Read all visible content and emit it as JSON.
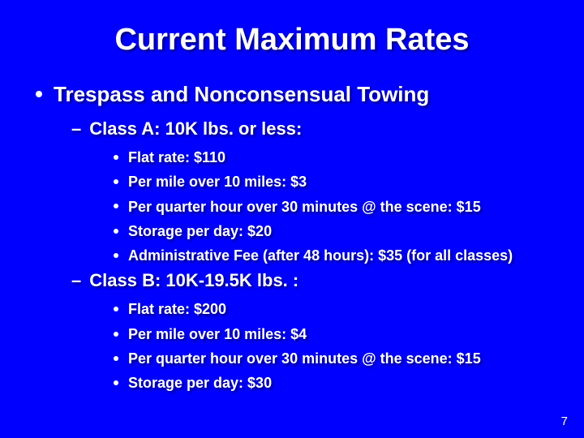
{
  "background_color": "#0000ff",
  "text_color": "#ffffff",
  "title": "Current Maximum Rates",
  "title_fontsize": 38,
  "heading_fontsize": 26,
  "subhead_fontsize": 22,
  "item_fontsize": 18,
  "bullet_color": "#ffffff",
  "page_number": "7",
  "sections": {
    "main": {
      "label": "Trespass and Nonconsensual Towing",
      "classes": [
        {
          "label": "Class A: 10K lbs. or less:",
          "items": [
            "Flat rate: $110",
            "Per mile over 10 miles: $3",
            "Per quarter hour over 30 minutes @ the scene: $15",
            "Storage per day: $20",
            "Administrative Fee (after 48 hours): $35 (for all classes)"
          ]
        },
        {
          "label": "Class B: 10K-19.5K lbs. :",
          "items": [
            "Flat rate: $200",
            "Per mile over 10 miles: $4",
            "Per quarter hour over 30 minutes @ the scene: $15",
            "Storage per day: $30"
          ]
        }
      ]
    }
  }
}
